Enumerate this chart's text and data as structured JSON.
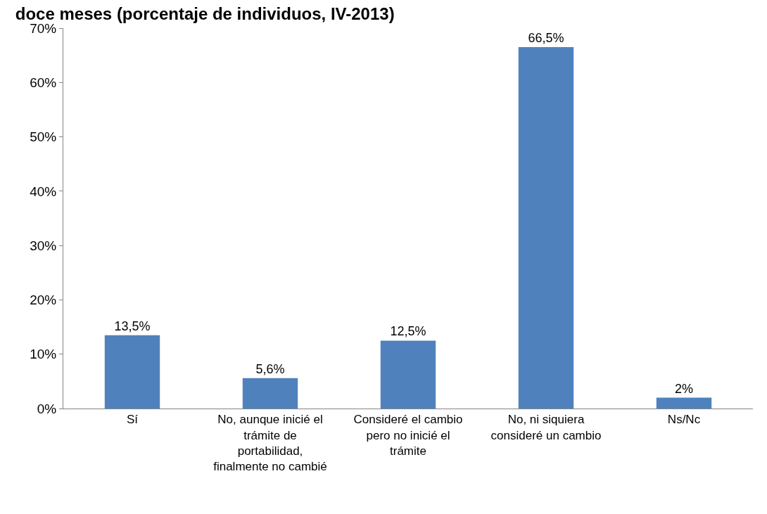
{
  "chart_data": {
    "type": "bar",
    "title": "doce meses (porcentaje de individuos, IV-2013)",
    "categories": [
      "Sí",
      "No, aunque inicié el trámite de portabilidad, finalmente no cambié",
      "Consideré el cambio pero no inicié el trámite",
      "No, ni siquiera consideré un cambio",
      "Ns/Nc"
    ],
    "values": [
      13.5,
      5.6,
      12.5,
      66.5,
      2
    ],
    "value_labels": [
      "13,5%",
      "5,6%",
      "12,5%",
      "66,5%",
      "2%"
    ],
    "color": "#4f81bd",
    "ylim": [
      0,
      70
    ],
    "yticks": [
      {
        "value": 0,
        "label": "0%"
      },
      {
        "value": 10,
        "label": "10%"
      },
      {
        "value": 20,
        "label": "20%"
      },
      {
        "value": 30,
        "label": "30%"
      },
      {
        "value": 40,
        "label": "40%"
      },
      {
        "value": 50,
        "label": "50%"
      },
      {
        "value": 60,
        "label": "60%"
      },
      {
        "value": 70,
        "label": "70%"
      }
    ],
    "legend": false
  }
}
